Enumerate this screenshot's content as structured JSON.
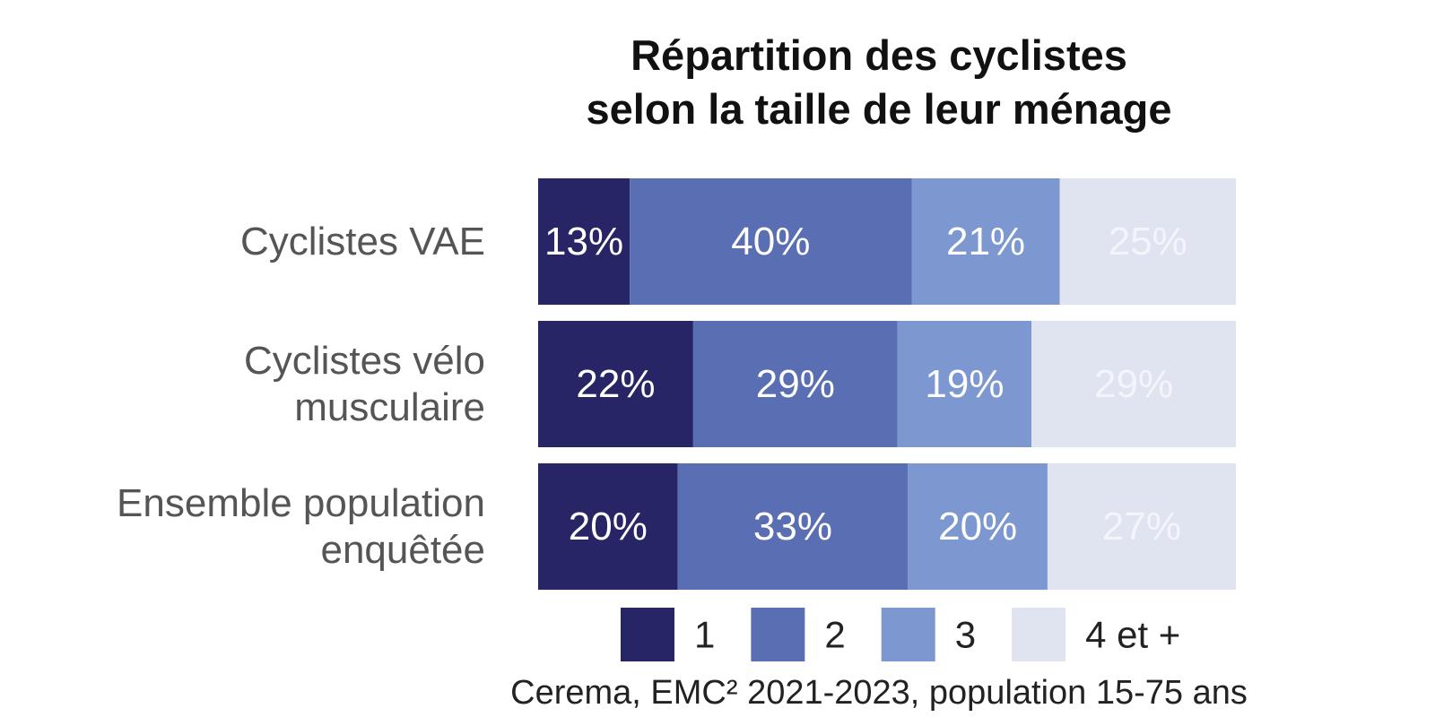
{
  "chart_data": {
    "type": "bar",
    "orientation": "horizontal",
    "stacked": true,
    "percent_stacked": true,
    "title_lines": [
      "Répartition des cyclistes",
      "selon la taille de leur ménage"
    ],
    "categories": [
      [
        "Cyclistes VAE"
      ],
      [
        "Cyclistes vélo",
        "musculaire"
      ],
      [
        "Ensemble population",
        "enquêtée"
      ]
    ],
    "series": [
      {
        "name": "1",
        "color": "#272566",
        "label_color": "#ffffff",
        "values": [
          13,
          22,
          20
        ],
        "labels": [
          "13%",
          "22%",
          "20%"
        ]
      },
      {
        "name": "2",
        "color": "#5a6eb3",
        "label_color": "#ffffff",
        "values": [
          40,
          29,
          33
        ],
        "labels": [
          "40%",
          "29%",
          "33%"
        ]
      },
      {
        "name": "3",
        "color": "#7d97d0",
        "label_color": "#ffffff",
        "values": [
          21,
          19,
          20
        ],
        "labels": [
          "21%",
          "19%",
          "20%"
        ]
      },
      {
        "name": "4 et +",
        "color": "#dfe4f0",
        "label_color": "#f3f5fa",
        "values": [
          25,
          29,
          27
        ],
        "labels": [
          "25%",
          "29%",
          "27%"
        ]
      }
    ],
    "xlim": [
      0,
      100
    ],
    "grid": false,
    "legend_position": "bottom",
    "source": "Cerema, EMC² 2021-2023, population 15-75 ans"
  }
}
